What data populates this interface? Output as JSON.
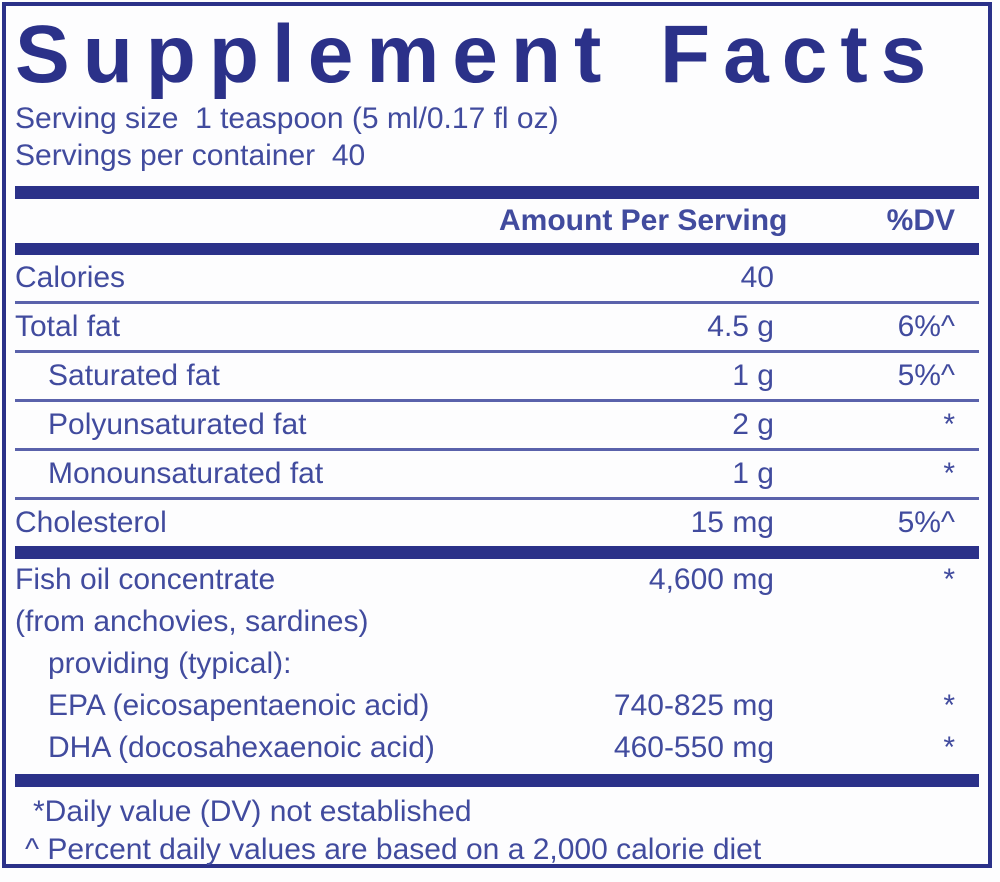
{
  "colors": {
    "navy": "#2b3189",
    "text": "#414b9e",
    "rule": "#5a62ab",
    "background": "#fdfdfe"
  },
  "title": "Supplement Facts",
  "serving": {
    "line1": "Serving size  1 teaspoon (5 ml/0.17 fl oz)",
    "line2": "Servings per container  40"
  },
  "header": {
    "amount": "Amount Per Serving",
    "dv": "%DV"
  },
  "main_rows": [
    {
      "label": "Calories",
      "amount": "40",
      "dv": "",
      "indent": false
    },
    {
      "label": "Total fat",
      "amount": "4.5 g",
      "dv": "6%^",
      "indent": false
    },
    {
      "label": "Saturated fat",
      "amount": "1 g",
      "dv": "5%^",
      "indent": true
    },
    {
      "label": "Polyunsaturated fat",
      "amount": "2 g",
      "dv": "*",
      "indent": true
    },
    {
      "label": "Monounsaturated fat",
      "amount": "1 g",
      "dv": "*",
      "indent": true
    },
    {
      "label": "Cholesterol",
      "amount": "15 mg",
      "dv": "5%^",
      "indent": false
    }
  ],
  "ingredient_rows": [
    {
      "label": "Fish oil concentrate",
      "amount": "4,600 mg",
      "dv": "*",
      "indent": false
    },
    {
      "label": "(from anchovies, sardines)",
      "amount": "",
      "dv": "",
      "indent": false
    },
    {
      "label": "providing (typical):",
      "amount": "",
      "dv": "",
      "indent": true
    },
    {
      "label": "EPA (eicosapentaenoic acid)",
      "amount": "740-825 mg",
      "dv": "*",
      "indent": true
    },
    {
      "label": "DHA (docosahexaenoic acid)",
      "amount": "460-550 mg",
      "dv": "*",
      "indent": true
    }
  ],
  "footnotes": [
    "*Daily value (DV) not established",
    "^ Percent daily values are based on a 2,000 calorie diet"
  ]
}
